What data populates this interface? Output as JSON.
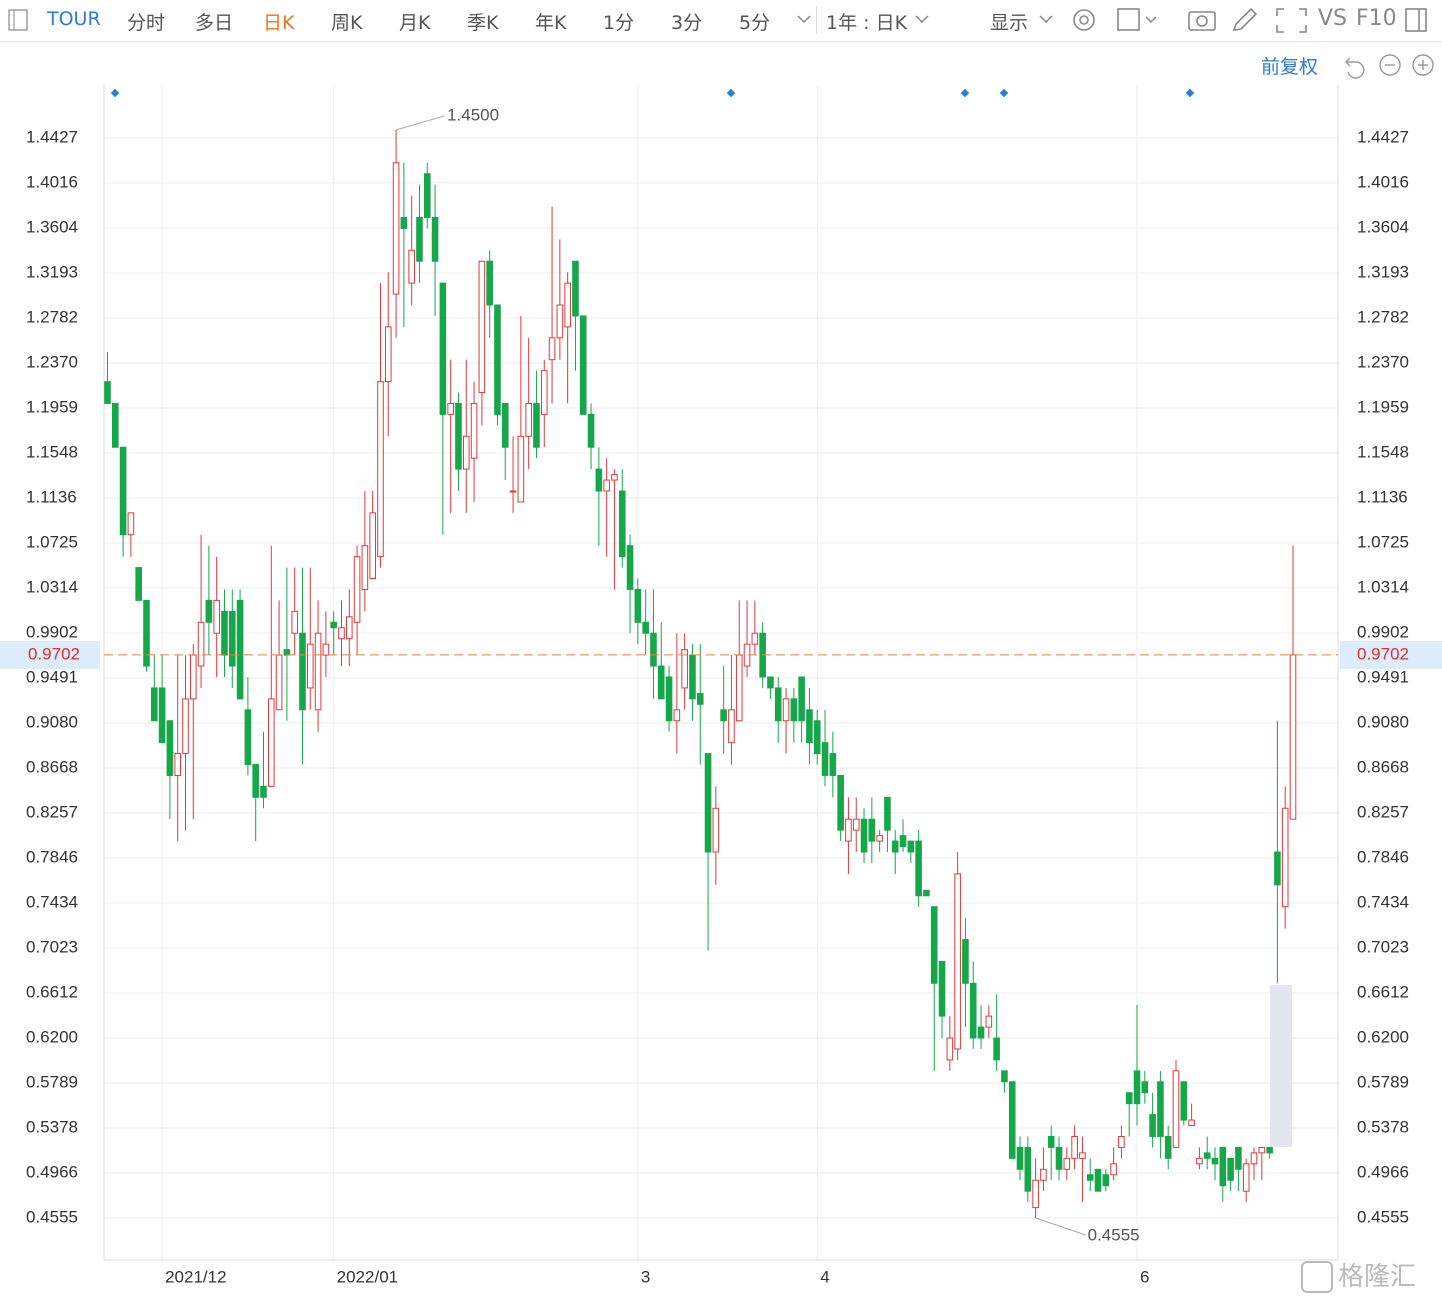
{
  "toolbar": {
    "symbol": "TOUR",
    "periods": [
      "分时",
      "多日",
      "日K",
      "周K",
      "月K",
      "季K",
      "年K",
      "1分",
      "3分",
      "5分"
    ],
    "active_period": 2,
    "range": "1年 : 日K",
    "display": "显示",
    "vs": "VS",
    "f10": "F10",
    "adjust": "前复权"
  },
  "watermark": "格隆汇",
  "chart_data": {
    "type": "candlestick",
    "categories": [
      null,
      null,
      null,
      null,
      null,
      null,
      null,
      "2021/12",
      null,
      null,
      null,
      null,
      null,
      null,
      null,
      null,
      null,
      null,
      null,
      null,
      null,
      null,
      null,
      null,
      null,
      null,
      null,
      null,
      null,
      "2022/01",
      null,
      null,
      null,
      null,
      null,
      null,
      null,
      null,
      null,
      null,
      null,
      null,
      null,
      null,
      null,
      null,
      null,
      null,
      null,
      null,
      null,
      null,
      null,
      null,
      null,
      null,
      null,
      null,
      null,
      null,
      null,
      null,
      null,
      null,
      null,
      null,
      null,
      null,
      "3",
      null,
      null,
      null,
      null,
      null,
      null,
      null,
      null,
      null,
      null,
      null,
      null,
      null,
      null,
      null,
      null,
      null,
      null,
      null,
      null,
      null,
      null,
      "4",
      null,
      null,
      null,
      null,
      null,
      null,
      null,
      null,
      null,
      null,
      null,
      null,
      null,
      null,
      null,
      null,
      null,
      null,
      null,
      null,
      null,
      null,
      null,
      null,
      null,
      null,
      null,
      null,
      null,
      null,
      null,
      null,
      null,
      null,
      null,
      null,
      null,
      null,
      null,
      null,
      "6",
      null,
      null,
      null,
      null,
      null,
      null,
      null,
      null,
      null,
      null,
      null,
      null,
      null,
      null,
      null,
      null,
      null,
      null,
      null,
      null
    ],
    "open": [
      1.22,
      1.2,
      1.16,
      1.08,
      1.05,
      1.02,
      0.94,
      0.94,
      0.91,
      0.86,
      0.88,
      0.93,
      0.96,
      1.02,
      0.99,
      1.01,
      1.01,
      1.02,
      0.92,
      0.87,
      0.85,
      0.85,
      0.92,
      0.975,
      0.99,
      0.99,
      0.94,
      0.92,
      0.97,
      1.0,
      0.985,
      0.985,
      1.0,
      1.03,
      1.04,
      1.06,
      1.22,
      1.3,
      1.37,
      1.31,
      1.37,
      1.41,
      1.37,
      1.31,
      1.19,
      1.2,
      1.14,
      1.15,
      1.21,
      1.33,
      1.29,
      1.2,
      1.12,
      1.11,
      1.17,
      1.2,
      1.19,
      1.24,
      1.26,
      1.27,
      1.33,
      1.28,
      1.19,
      1.14,
      1.12,
      1.13,
      1.12,
      1.07,
      1.03,
      1.0,
      0.99,
      0.96,
      0.95,
      0.91,
      0.94,
      0.97,
      0.935,
      0.88,
      0.79,
      0.92,
      0.89,
      0.91,
      0.96,
      0.98,
      0.99,
      0.95,
      0.94,
      0.91,
      0.93,
      0.95,
      0.92,
      0.91,
      0.89,
      0.88,
      0.86,
      0.8,
      0.81,
      0.82,
      0.82,
      0.8,
      0.84,
      0.8,
      0.805,
      0.8,
      0.8,
      0.755,
      0.74,
      0.69,
      0.6,
      0.61,
      0.71,
      0.67,
      0.63,
      0.63,
      0.62,
      0.59,
      0.58,
      0.52,
      0.52,
      0.465,
      0.49,
      0.53,
      0.52,
      0.5,
      0.51,
      0.51,
      0.495,
      0.5,
      0.495,
      0.495,
      0.52,
      0.57,
      0.59,
      0.58,
      0.55,
      0.58,
      0.53,
      0.52,
      0.58,
      0.54,
      0.505,
      0.515,
      0.51,
      0.52,
      0.51,
      0.52,
      0.48,
      0.505,
      0.515,
      0.52,
      0.79,
      0.74,
      0.82
    ],
    "high": [
      1.247,
      1.2,
      1.16,
      1.1,
      1.05,
      1.02,
      0.97,
      0.97,
      0.91,
      0.97,
      0.97,
      0.98,
      1.08,
      1.07,
      1.06,
      1.03,
      1.03,
      1.03,
      0.95,
      0.87,
      0.9,
      1.07,
      1.02,
      1.05,
      1.05,
      1.05,
      1.05,
      1.02,
      1.01,
      1.01,
      1.02,
      1.03,
      1.07,
      1.12,
      1.12,
      1.31,
      1.32,
      1.45,
      1.42,
      1.39,
      1.4,
      1.42,
      1.4,
      1.31,
      1.24,
      1.21,
      1.24,
      1.22,
      1.33,
      1.34,
      1.29,
      1.2,
      1.17,
      1.28,
      1.26,
      1.23,
      1.24,
      1.38,
      1.35,
      1.32,
      1.33,
      1.28,
      1.2,
      1.16,
      1.15,
      1.14,
      1.14,
      1.08,
      1.04,
      1.03,
      1.03,
      1.0,
      0.96,
      0.99,
      0.99,
      0.98,
      0.98,
      0.88,
      0.85,
      0.96,
      0.97,
      1.02,
      1.02,
      1.02,
      1.0,
      0.95,
      0.95,
      0.94,
      0.94,
      0.95,
      0.94,
      0.92,
      0.92,
      0.9,
      0.86,
      0.84,
      0.84,
      0.83,
      0.84,
      0.81,
      0.84,
      0.81,
      0.82,
      0.8,
      0.81,
      0.755,
      0.74,
      0.69,
      0.64,
      0.79,
      0.73,
      0.69,
      0.65,
      0.65,
      0.66,
      0.59,
      0.58,
      0.53,
      0.53,
      0.51,
      0.52,
      0.54,
      0.53,
      0.52,
      0.54,
      0.53,
      0.51,
      0.5,
      0.5,
      0.52,
      0.54,
      0.57,
      0.65,
      0.59,
      0.57,
      0.59,
      0.54,
      0.6,
      0.58,
      0.56,
      0.52,
      0.53,
      0.52,
      0.52,
      0.51,
      0.52,
      0.51,
      0.52,
      0.52,
      0.52,
      0.91,
      0.85,
      1.07
    ],
    "low": [
      1.2,
      1.16,
      1.06,
      1.06,
      1.02,
      0.955,
      0.91,
      0.89,
      0.82,
      0.8,
      0.81,
      0.82,
      0.94,
      0.97,
      0.95,
      0.95,
      0.94,
      0.93,
      0.86,
      0.8,
      0.83,
      0.85,
      0.92,
      0.91,
      0.97,
      0.87,
      0.92,
      0.9,
      0.95,
      0.97,
      0.96,
      0.96,
      0.97,
      1.01,
      1.04,
      1.05,
      1.17,
      1.26,
      1.27,
      1.29,
      1.31,
      1.36,
      1.28,
      1.08,
      1.1,
      1.12,
      1.1,
      1.11,
      1.18,
      1.26,
      1.18,
      1.13,
      1.1,
      1.11,
      1.14,
      1.15,
      1.16,
      1.2,
      1.24,
      1.2,
      1.23,
      1.19,
      1.14,
      1.07,
      1.06,
      1.03,
      1.05,
      0.99,
      0.98,
      0.97,
      0.93,
      0.93,
      0.9,
      0.88,
      0.92,
      0.91,
      0.87,
      0.7,
      0.76,
      0.88,
      0.87,
      0.91,
      0.95,
      0.97,
      0.94,
      0.93,
      0.89,
      0.88,
      0.89,
      0.89,
      0.87,
      0.87,
      0.85,
      0.84,
      0.8,
      0.77,
      0.79,
      0.78,
      0.78,
      0.79,
      0.79,
      0.77,
      0.79,
      0.78,
      0.74,
      0.75,
      0.59,
      0.62,
      0.59,
      0.6,
      0.63,
      0.61,
      0.61,
      0.62,
      0.59,
      0.57,
      0.51,
      0.49,
      0.47,
      0.4555,
      0.48,
      0.49,
      0.49,
      0.49,
      0.5,
      0.47,
      0.48,
      0.48,
      0.48,
      0.49,
      0.51,
      0.53,
      0.54,
      0.56,
      0.52,
      0.51,
      0.5,
      0.52,
      0.54,
      0.54,
      0.5,
      0.5,
      0.49,
      0.47,
      0.48,
      0.48,
      0.47,
      0.49,
      0.49,
      0.51,
      0.67,
      0.72,
      0.82
    ],
    "close": [
      1.2,
      1.16,
      1.08,
      1.1,
      1.02,
      0.96,
      0.91,
      0.89,
      0.86,
      0.88,
      0.93,
      0.97,
      1.0,
      1.0,
      1.02,
      0.97,
      0.96,
      0.93,
      0.87,
      0.84,
      0.84,
      0.93,
      0.97,
      0.97,
      1.01,
      0.92,
      0.98,
      0.99,
      0.98,
      0.995,
      0.995,
      1.005,
      1.06,
      1.07,
      1.1,
      1.22,
      1.27,
      1.42,
      1.36,
      1.34,
      1.33,
      1.37,
      1.33,
      1.19,
      1.2,
      1.14,
      1.17,
      1.2,
      1.33,
      1.29,
      1.19,
      1.16,
      1.12,
      1.17,
      1.2,
      1.16,
      1.23,
      1.26,
      1.29,
      1.31,
      1.28,
      1.19,
      1.16,
      1.12,
      1.13,
      1.135,
      1.06,
      1.03,
      1.0,
      0.99,
      0.96,
      0.93,
      0.91,
      0.92,
      0.975,
      0.93,
      0.925,
      0.79,
      0.83,
      0.91,
      0.92,
      0.97,
      0.98,
      0.99,
      0.95,
      0.94,
      0.91,
      0.93,
      0.91,
      0.91,
      0.89,
      0.88,
      0.86,
      0.86,
      0.81,
      0.82,
      0.82,
      0.79,
      0.8,
      0.805,
      0.81,
      0.79,
      0.795,
      0.79,
      0.75,
      0.75,
      0.67,
      0.64,
      0.62,
      0.77,
      0.67,
      0.62,
      0.62,
      0.64,
      0.6,
      0.58,
      0.51,
      0.5,
      0.48,
      0.49,
      0.5,
      0.52,
      0.5,
      0.51,
      0.53,
      0.515,
      0.49,
      0.48,
      0.485,
      0.505,
      0.53,
      0.56,
      0.56,
      0.57,
      0.53,
      0.53,
      0.51,
      0.59,
      0.545,
      0.545,
      0.51,
      0.51,
      0.505,
      0.485,
      0.49,
      0.5,
      0.505,
      0.515,
      0.52,
      0.515,
      0.76,
      0.83,
      0.9702
    ],
    "up_color": "#e0393b",
    "down_color": "#17a74b",
    "ylim": [
      0.4171,
      1.4911
    ],
    "yticks": [
      1.4427,
      1.4016,
      1.3604,
      1.3193,
      1.2782,
      {
        "value": 1.237,
        "label": "1.2370"
      },
      1.1959,
      1.1548,
      1.1136,
      1.0725,
      1.0314,
      0.9902,
      0.9491,
      {
        "value": 0.908,
        "label": "0.9080"
      },
      0.8668,
      0.8257,
      0.7846,
      0.7434,
      0.7023,
      0.6612,
      {
        "value": 0.62,
        "label": "0.6200"
      },
      0.5789,
      0.5378,
      0.4966,
      0.4555
    ],
    "grid": true,
    "last_price": 0.9702,
    "max_label": {
      "value": 1.45,
      "label": "1.4500"
    },
    "min_label": 0.4555
  }
}
